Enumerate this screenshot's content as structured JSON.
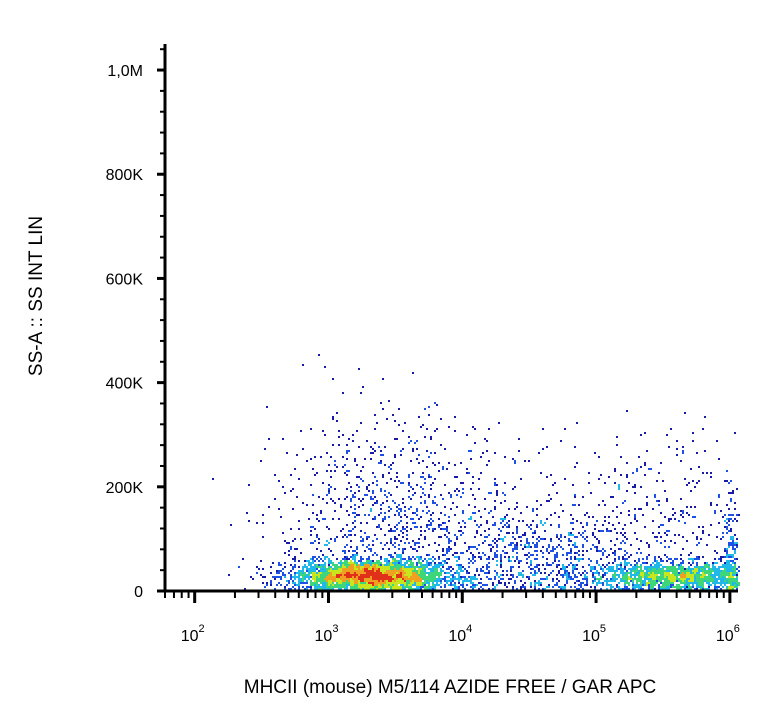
{
  "chart_data": {
    "type": "scatter",
    "title": "",
    "xlabel": "MHCII (mouse) M5/114 AZIDE FREE / GAR APC",
    "ylabel": "SS-A :: SS INT LIN",
    "x_scale": "log",
    "xlim": [
      60,
      1150000
    ],
    "ylim": [
      0,
      1050000
    ],
    "x_ticks": [
      {
        "value": 100,
        "base": "10",
        "exp": "2"
      },
      {
        "value": 1000,
        "base": "10",
        "exp": "3"
      },
      {
        "value": 10000,
        "base": "10",
        "exp": "4"
      },
      {
        "value": 100000,
        "base": "10",
        "exp": "5"
      },
      {
        "value": 1000000,
        "base": "10",
        "exp": "6"
      }
    ],
    "y_ticks": [
      {
        "value": 0,
        "label": "0"
      },
      {
        "value": 200000,
        "label": "200K"
      },
      {
        "value": 400000,
        "label": "400K"
      },
      {
        "value": 600000,
        "label": "600K"
      },
      {
        "value": 800000,
        "label": "800K"
      },
      {
        "value": 1000000,
        "label": "1,0M"
      }
    ],
    "grid": false,
    "colormap": [
      "#1a1aa8",
      "#1e50e6",
      "#20b8e8",
      "#3ed67a",
      "#c8e61e",
      "#f0a020",
      "#e0301a"
    ],
    "populations": [
      {
        "x_center": 2000,
        "y_center": 30000,
        "x_spread_decades": 0.28,
        "y_spread": 15000,
        "n": 3500
      },
      {
        "x_center": 3000,
        "y_center": 120000,
        "x_spread_decades": 0.45,
        "y_spread": 110000,
        "n": 1100
      },
      {
        "x_center": 400000,
        "y_center": 30000,
        "x_spread_decades": 0.35,
        "y_spread": 14000,
        "n": 1700
      },
      {
        "x_center": 200000,
        "y_center": 100000,
        "x_spread_decades": 0.6,
        "y_spread": 100000,
        "n": 700
      },
      {
        "x_center": 30000,
        "y_center": 60000,
        "x_spread_decades": 0.4,
        "y_spread": 45000,
        "n": 600
      },
      {
        "x_center": 1000000,
        "y_center": 60000,
        "x_spread_decades": 0.03,
        "y_spread": 60000,
        "n": 200
      }
    ]
  }
}
